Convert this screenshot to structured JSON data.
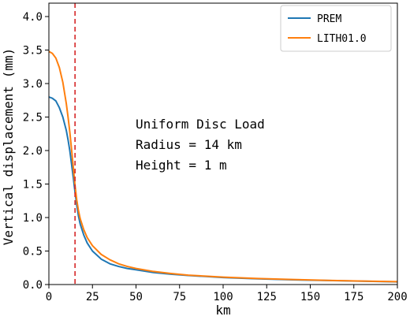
{
  "chart_data": {
    "type": "line",
    "xlabel": "km",
    "ylabel": "Vertical displacement (mm)",
    "xlim": [
      0,
      200
    ],
    "ylim": [
      0,
      4.2
    ],
    "xticks": [
      0,
      25,
      50,
      75,
      100,
      125,
      150,
      175,
      200
    ],
    "yticks": [
      0.0,
      0.5,
      1.0,
      1.5,
      2.0,
      2.5,
      3.0,
      3.5,
      4.0
    ],
    "grid": false,
    "legend_position": "top-right",
    "vline": {
      "x": 15,
      "color": "#d62728",
      "style": "dashed"
    },
    "annotation_lines": [
      "Uniform Disc Load",
      "Radius = 14 km",
      "Height = 1 m"
    ],
    "series": [
      {
        "name": "PREM",
        "color": "#1f77b4",
        "x": [
          0,
          2,
          4,
          6,
          8,
          10,
          11,
          12,
          13,
          14,
          15,
          16,
          17,
          18,
          20,
          22,
          25,
          30,
          35,
          40,
          45,
          50,
          60,
          70,
          80,
          90,
          100,
          120,
          140,
          160,
          180,
          200
        ],
        "y": [
          2.8,
          2.78,
          2.74,
          2.64,
          2.5,
          2.3,
          2.16,
          2.0,
          1.8,
          1.6,
          1.38,
          1.18,
          1.02,
          0.9,
          0.74,
          0.62,
          0.5,
          0.38,
          0.31,
          0.27,
          0.24,
          0.22,
          0.18,
          0.155,
          0.135,
          0.12,
          0.105,
          0.085,
          0.07,
          0.06,
          0.05,
          0.04
        ]
      },
      {
        "name": "LITH01.0",
        "color": "#ff7f0e",
        "x": [
          0,
          2,
          4,
          6,
          8,
          10,
          11,
          12,
          13,
          14,
          15,
          16,
          17,
          18,
          20,
          22,
          25,
          30,
          35,
          40,
          45,
          50,
          60,
          70,
          80,
          90,
          100,
          120,
          140,
          160,
          180,
          200
        ],
        "y": [
          3.48,
          3.45,
          3.38,
          3.24,
          3.02,
          2.7,
          2.5,
          2.28,
          2.02,
          1.75,
          1.48,
          1.26,
          1.1,
          0.98,
          0.82,
          0.7,
          0.58,
          0.45,
          0.37,
          0.31,
          0.27,
          0.24,
          0.195,
          0.165,
          0.14,
          0.125,
          0.11,
          0.09,
          0.075,
          0.062,
          0.052,
          0.043
        ]
      }
    ]
  }
}
